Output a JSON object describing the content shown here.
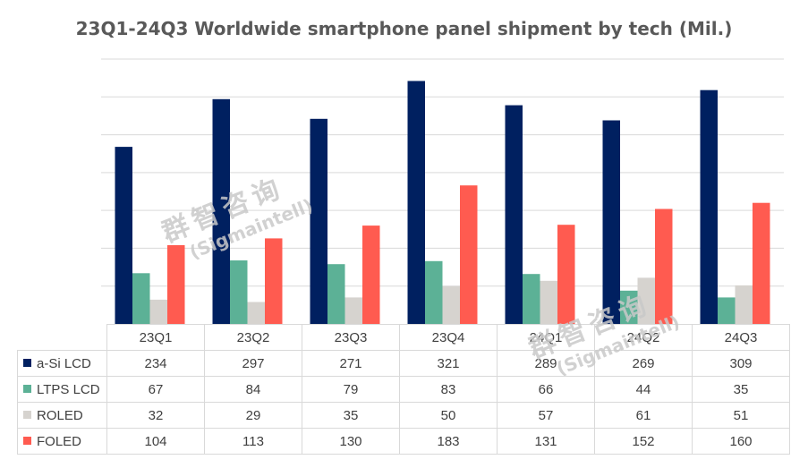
{
  "chart_data": {
    "type": "bar",
    "title": "23Q1-24Q3 Worldwide smartphone panel shipment by tech (Mil.)",
    "categories": [
      "23Q1",
      "23Q2",
      "23Q3",
      "23Q4",
      "24Q1",
      "24Q2",
      "24Q3"
    ],
    "series": [
      {
        "name": "a-Si LCD",
        "color": "#002060",
        "values": [
          234,
          297,
          271,
          321,
          289,
          269,
          309
        ]
      },
      {
        "name": "LTPS LCD",
        "color": "#5cb196",
        "values": [
          67,
          84,
          79,
          83,
          66,
          44,
          35
        ]
      },
      {
        "name": "ROLED",
        "color": "#d6d3cf",
        "values": [
          32,
          29,
          35,
          50,
          57,
          61,
          51
        ]
      },
      {
        "name": "FOLED",
        "color": "#ff5b50",
        "values": [
          104,
          113,
          130,
          183,
          131,
          152,
          160
        ]
      }
    ],
    "ylim": [
      0,
      350
    ],
    "grid": true,
    "legend": "data-table-below",
    "xlabel": "",
    "ylabel": ""
  },
  "watermark": {
    "brand_cn": "群智咨询",
    "brand_en": "(Sigmaintell)"
  }
}
